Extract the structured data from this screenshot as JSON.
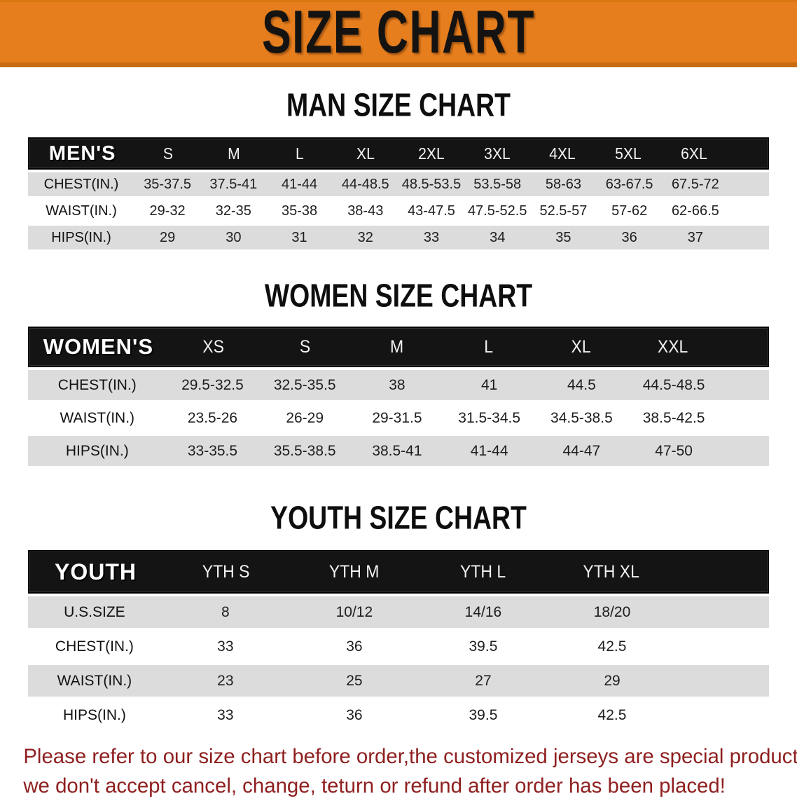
{
  "banner": {
    "title": "SIZE CHART"
  },
  "sections": [
    {
      "title": "MAN SIZE CHART",
      "table": {
        "label": "MEN'S",
        "columns": [
          "S",
          "M",
          "L",
          "XL",
          "2XL",
          "3XL",
          "4XL",
          "5XL",
          "6XL"
        ],
        "rows": [
          {
            "label": "CHEST(IN.)",
            "values": [
              "35-37.5",
              "37.5-41",
              "41-44",
              "44-48.5",
              "48.5-53.5",
              "53.5-58",
              "58-63",
              "63-67.5",
              "67.5-72"
            ]
          },
          {
            "label": "WAIST(IN.)",
            "values": [
              "29-32",
              "32-35",
              "35-38",
              "38-43",
              "43-47.5",
              "47.5-52.5",
              "52.5-57",
              "57-62",
              "62-66.5"
            ]
          },
          {
            "label": "HIPS(IN.)",
            "values": [
              "29",
              "30",
              "31",
              "32",
              "33",
              "34",
              "35",
              "36",
              "37"
            ]
          }
        ]
      }
    },
    {
      "title": "WOMEN SIZE CHART",
      "table": {
        "label": "WOMEN'S",
        "columns": [
          "XS",
          "S",
          "M",
          "L",
          "XL",
          "XXL"
        ],
        "rows": [
          {
            "label": "CHEST(IN.)",
            "values": [
              "29.5-32.5",
              "32.5-35.5",
              "38",
              "41",
              "44.5",
              "44.5-48.5"
            ]
          },
          {
            "label": "WAIST(IN.)",
            "values": [
              "23.5-26",
              "26-29",
              "29-31.5",
              "31.5-34.5",
              "34.5-38.5",
              "38.5-42.5"
            ]
          },
          {
            "label": "HIPS(IN.)",
            "values": [
              "33-35.5",
              "35.5-38.5",
              "38.5-41",
              "41-44",
              "44-47",
              "47-50"
            ]
          }
        ]
      }
    },
    {
      "title": "YOUTH SIZE CHART",
      "table": {
        "label": "YOUTH",
        "columns": [
          "YTH S",
          "YTH M",
          "YTH L",
          "YTH XL"
        ],
        "rows": [
          {
            "label": "U.S.SIZE",
            "values": [
              "8",
              "10/12",
              "14/16",
              "18/20"
            ]
          },
          {
            "label": "CHEST(IN.)",
            "values": [
              "33",
              "36",
              "39.5",
              "42.5"
            ]
          },
          {
            "label": "WAIST(IN.)",
            "values": [
              "23",
              "25",
              "27",
              "29"
            ]
          },
          {
            "label": "HIPS(IN.)",
            "values": [
              "33",
              "36",
              "39.5",
              "42.5"
            ]
          }
        ]
      }
    }
  ],
  "footer": {
    "line1": "Please refer to our size chart before order,the customized jerseys are special products,",
    "line2": "we don't accept cancel, change, teturn or refund after order has been placed!"
  },
  "colors": {
    "banner_orange": "#e67e1e",
    "table_header_black": "#141414",
    "row_band_gray": "#dcdcdc",
    "disclaimer_red": "#8f1f1f"
  }
}
